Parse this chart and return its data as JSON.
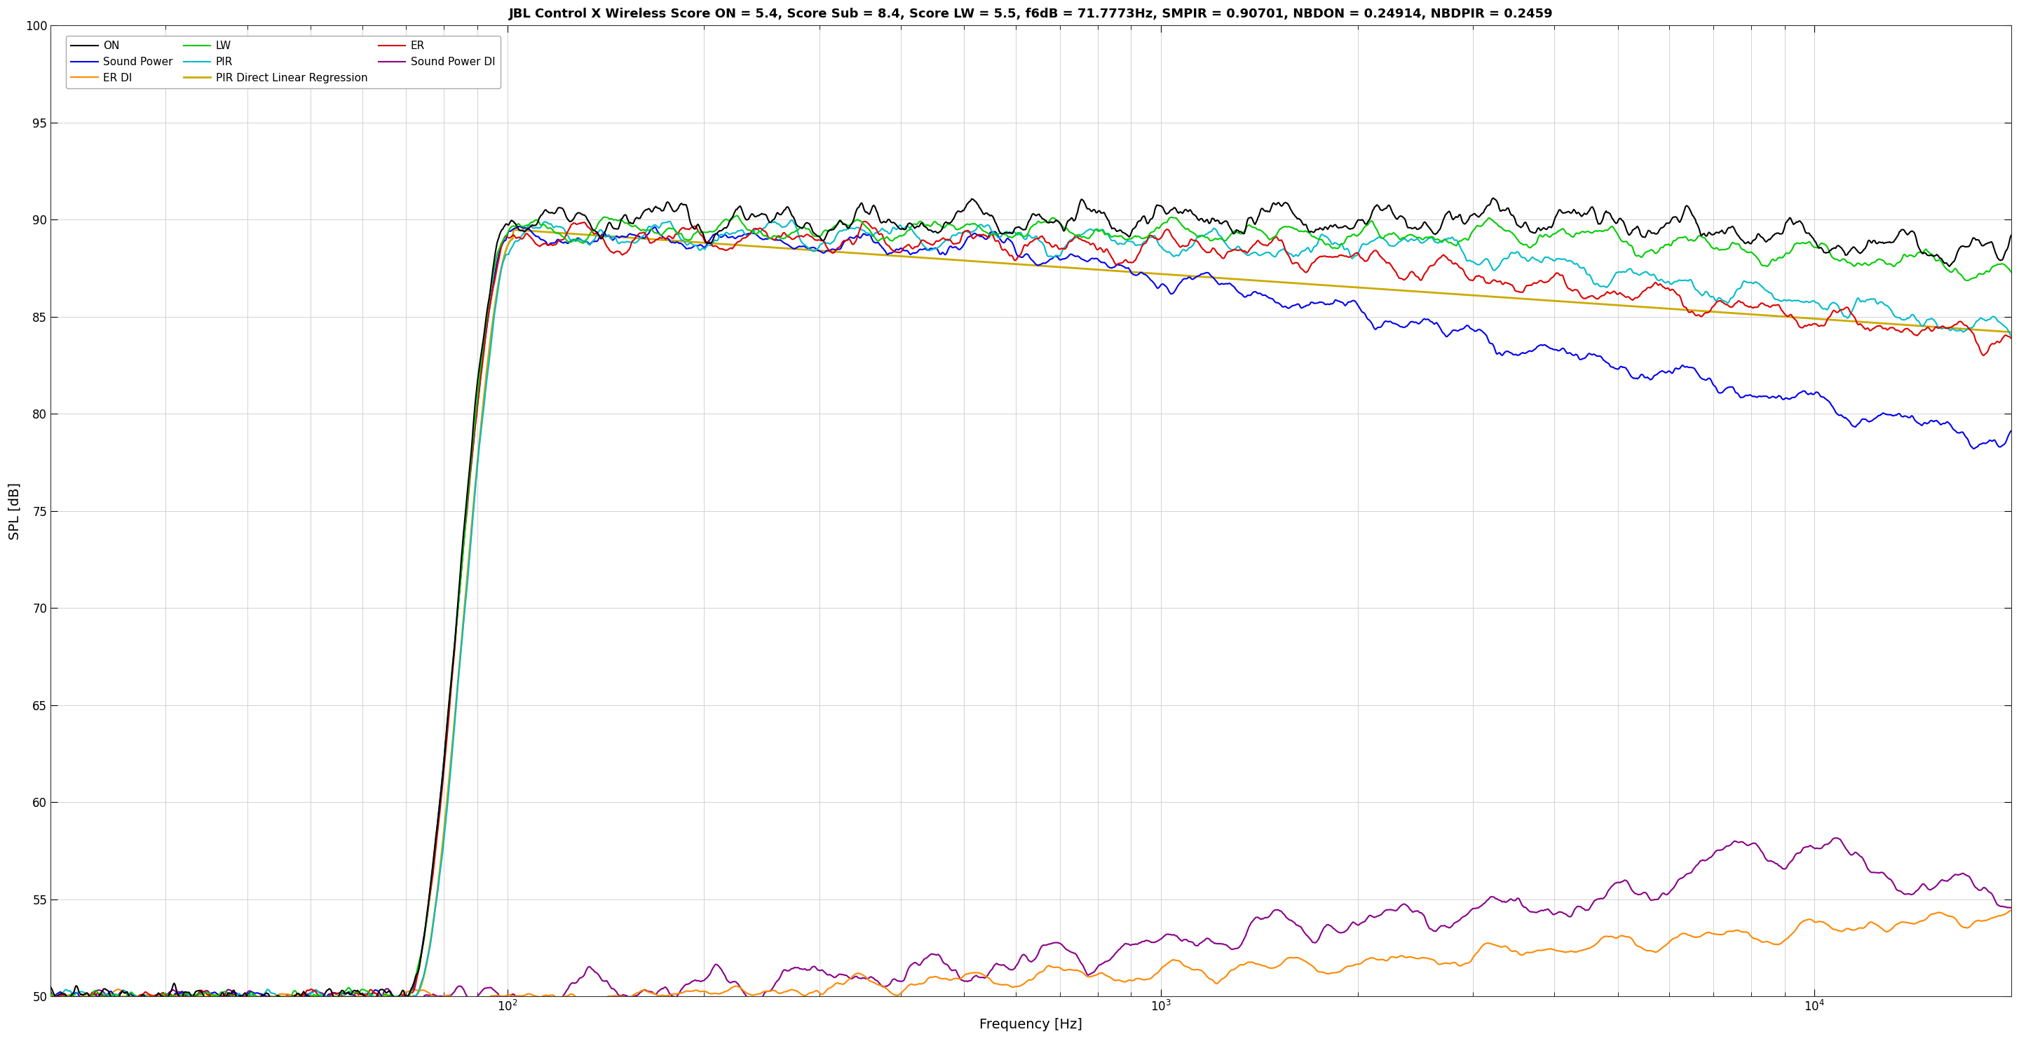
{
  "title": "JBL Control X Wireless Score ON = 5.4, Score Sub = 8.4, Score LW = 5.5, f6dB = 71.7773Hz, SMPIR = 0.90701, NBDON = 0.24914, NBDPIR = 0.2459",
  "xlabel": "Frequency [Hz]",
  "ylabel": "SPL [dB]",
  "xlim_min": 20,
  "xlim_max": 20000,
  "ylim_min": 50,
  "ylim_max": 100,
  "yticks": [
    50,
    55,
    60,
    65,
    70,
    75,
    80,
    85,
    90,
    95,
    100
  ],
  "bg_color": "#ffffff",
  "grid_color": "#cccccc",
  "title_fontsize": 13,
  "label_fontsize": 14,
  "tick_fontsize": 12,
  "legend_fontsize": 11,
  "colors": {
    "ON": "#000000",
    "LW": "#00cc00",
    "ER": "#dd0000",
    "Sound Power": "#0000ee",
    "PIR": "#00bbcc",
    "ER DI": "#ff8800",
    "Sound Power DI": "#880088",
    "PIR Direct Linear Regression": "#ccaa00"
  }
}
